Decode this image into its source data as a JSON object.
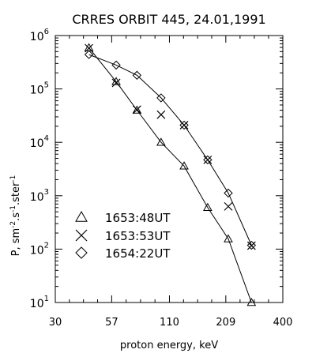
{
  "chart_data": {
    "type": "scatter",
    "title": "CRRES ORBIT 445, 24.01,1991",
    "xlabel": "proton energy, keV",
    "ylabel_base": "P, sm",
    "ylabel_exp_1": "-2",
    "ylabel_mid_1": ".s",
    "ylabel_exp_2": "-1",
    "ylabel_mid_2": ".ster",
    "ylabel_exp_3": "-1",
    "x_scale": "log",
    "y_scale": "log",
    "xlim": [
      30,
      400
    ],
    "ylim": [
      10,
      1000000
    ],
    "x_ticks": [
      "30",
      "57",
      "110",
      "209",
      "400"
    ],
    "y_tick_base": "10",
    "y_tick_exps": [
      "1",
      "2",
      "3",
      "4",
      "5",
      "6"
    ],
    "grid": false,
    "legend_position": "bottom-left",
    "series": [
      {
        "name": "1653:48UT",
        "marker": "triangle",
        "x": [
          44,
          60,
          76,
          100,
          130,
          170,
          215,
          280
        ],
        "y": [
          590000,
          137000,
          40000,
          10000,
          3600,
          600,
          155,
          10
        ]
      },
      {
        "name": "1653:53UT",
        "marker": "x",
        "x": [
          44,
          60,
          76,
          100,
          130,
          170,
          215,
          280
        ],
        "y": [
          580000,
          130000,
          41000,
          33000,
          21000,
          4700,
          630,
          116
        ]
      },
      {
        "name": "1654:22UT",
        "marker": "diamond",
        "x": [
          44,
          60,
          76,
          100,
          130,
          170,
          215,
          280
        ],
        "y": [
          440000,
          280000,
          180000,
          68000,
          21000,
          4700,
          1120,
          118
        ]
      }
    ],
    "connected_series": [
      "1653:48UT",
      "1654:22UT"
    ]
  }
}
